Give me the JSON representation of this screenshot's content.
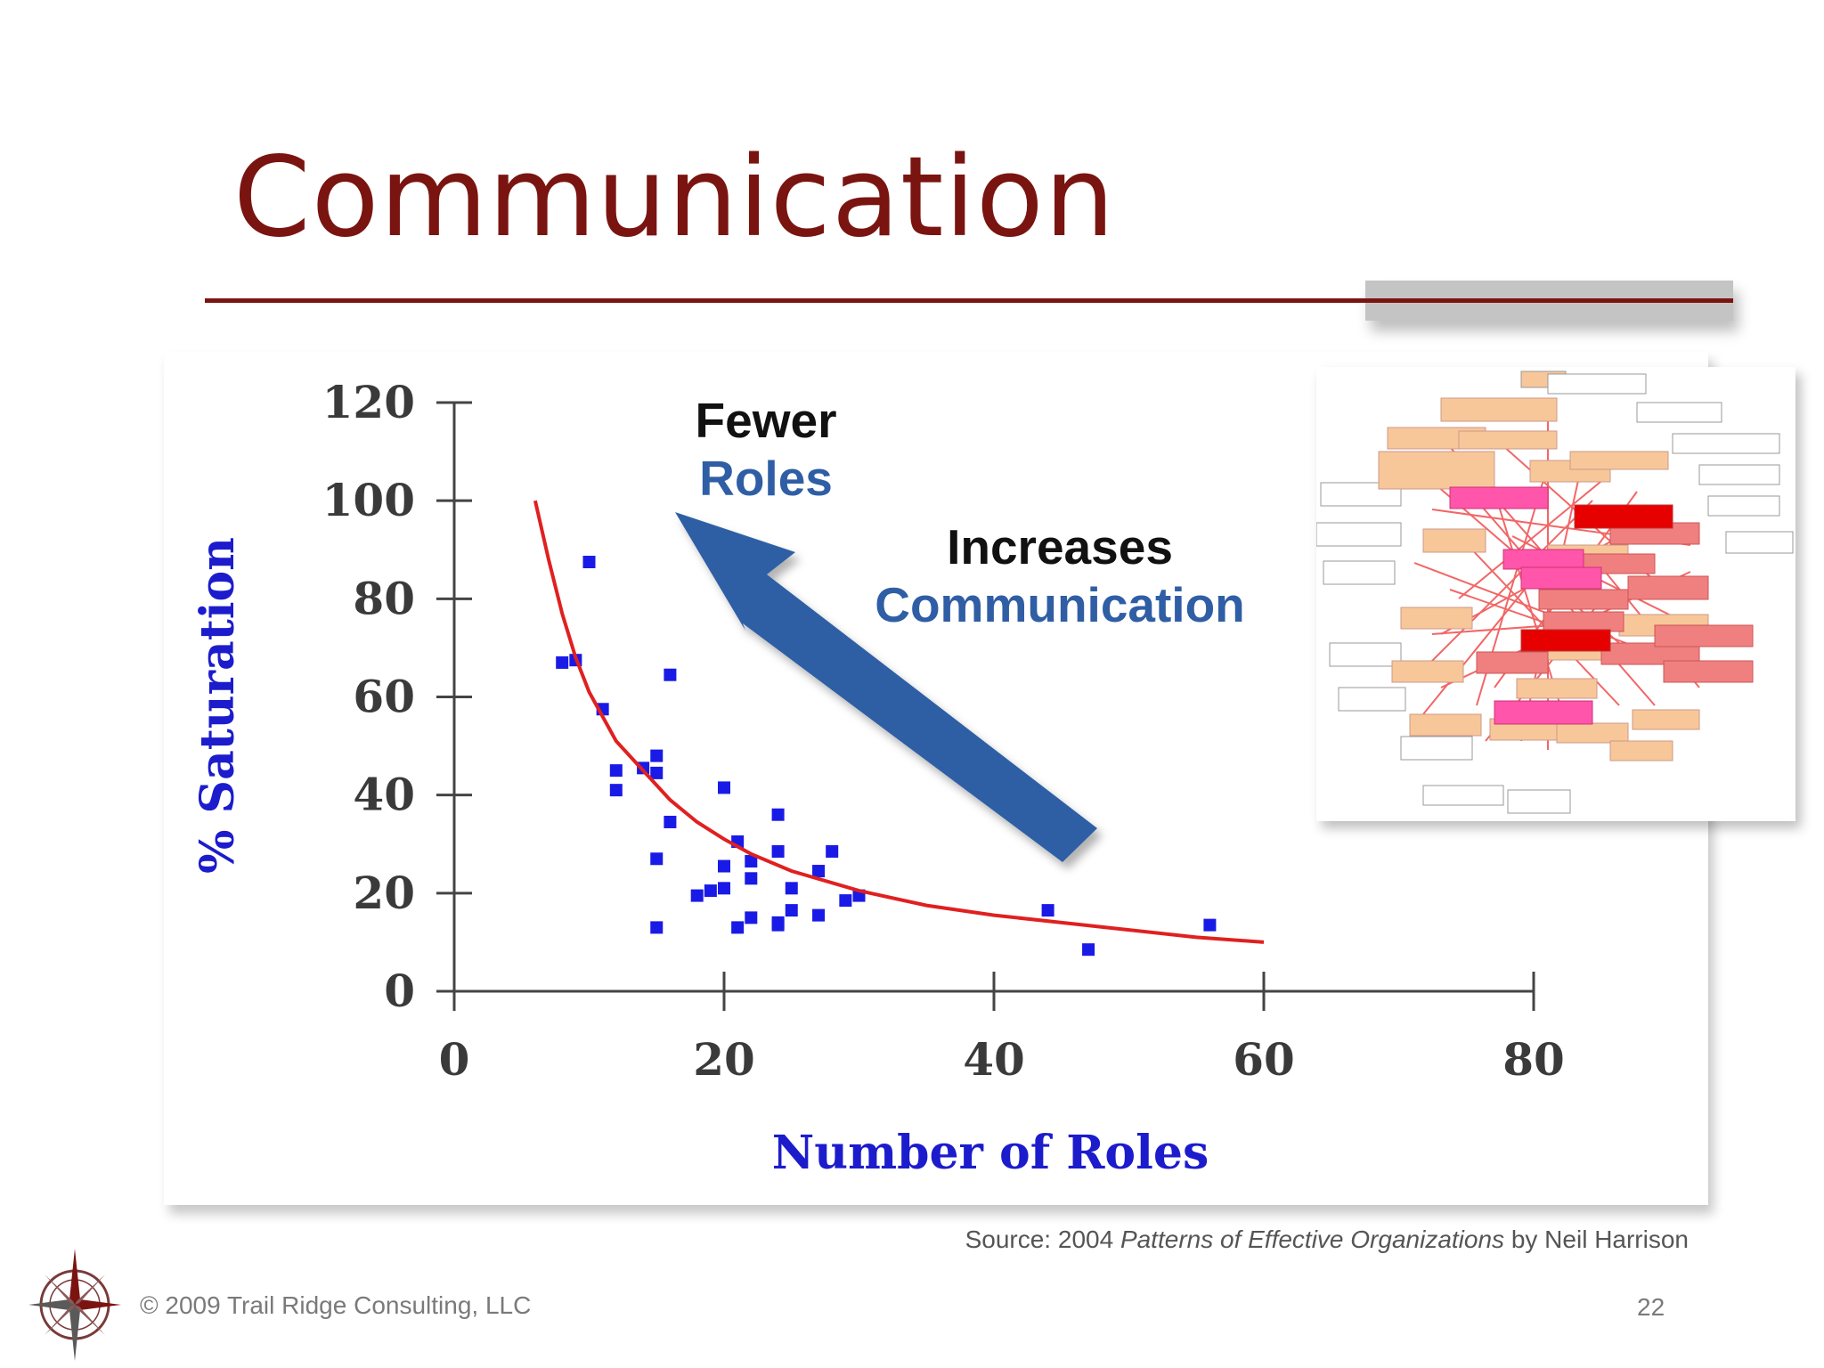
{
  "slide": {
    "title": "Communication",
    "source_prefix": "Source: 2004 ",
    "source_title": "Patterns of Effective Organizations",
    "source_suffix": " by Neil Harrison",
    "footer": "© 2009 Trail Ridge Consulting, LLC",
    "page_number": "22"
  },
  "annotations": {
    "fewer_line1": "Fewer",
    "fewer_line2": "Roles",
    "increases_line1": "Increases",
    "increases_line2": "Communication"
  },
  "colors": {
    "title": "#7a1410",
    "points": "#1a1ae6",
    "trend": "#e02020",
    "arrow": "#2f5ea5",
    "axis_label": "#1c1ccc"
  },
  "icons": {
    "logo": "compass-rose-icon",
    "network": "organization-network-graph"
  },
  "chart_data": {
    "type": "scatter",
    "xlabel": "Number of Roles",
    "ylabel": "% Saturation",
    "xlim": [
      0,
      80
    ],
    "ylim": [
      0,
      120
    ],
    "xticks": [
      0,
      20,
      40,
      60,
      80
    ],
    "yticks": [
      0,
      20,
      40,
      60,
      80,
      100,
      120
    ],
    "grid": false,
    "series": [
      {
        "type": "scatter",
        "points": [
          [
            8,
            67
          ],
          [
            9,
            67.5
          ],
          [
            10,
            87.5
          ],
          [
            11,
            57.5
          ],
          [
            12,
            45
          ],
          [
            12,
            41
          ],
          [
            14,
            45.5
          ],
          [
            15,
            48
          ],
          [
            15,
            44.5
          ],
          [
            15,
            27
          ],
          [
            15,
            13
          ],
          [
            16,
            64.5
          ],
          [
            16,
            34.5
          ],
          [
            18,
            19.5
          ],
          [
            19,
            20.5
          ],
          [
            20,
            21
          ],
          [
            20,
            25.5
          ],
          [
            20,
            41.5
          ],
          [
            21,
            30.5
          ],
          [
            21,
            13
          ],
          [
            22,
            26.5
          ],
          [
            22,
            23
          ],
          [
            22,
            15
          ],
          [
            24,
            36
          ],
          [
            24,
            28.5
          ],
          [
            24,
            13.5
          ],
          [
            24,
            14
          ],
          [
            25,
            21
          ],
          [
            25,
            16.5
          ],
          [
            27,
            24.5
          ],
          [
            27,
            15.5
          ],
          [
            28,
            28.5
          ],
          [
            29,
            18.5
          ],
          [
            30,
            19.5
          ],
          [
            44,
            16.5
          ],
          [
            47,
            8.5
          ],
          [
            56,
            13.5
          ]
        ]
      },
      {
        "type": "line",
        "points": [
          [
            6,
            100
          ],
          [
            7,
            88
          ],
          [
            8,
            77
          ],
          [
            9,
            68
          ],
          [
            10,
            61
          ],
          [
            11,
            56
          ],
          [
            12,
            51
          ],
          [
            14,
            45
          ],
          [
            16,
            39
          ],
          [
            18,
            34.5
          ],
          [
            20,
            31
          ],
          [
            22,
            28
          ],
          [
            25,
            24.5
          ],
          [
            30,
            20.5
          ],
          [
            35,
            17.5
          ],
          [
            40,
            15.5
          ],
          [
            45,
            14
          ],
          [
            50,
            12.5
          ],
          [
            55,
            11
          ],
          [
            60,
            10
          ]
        ]
      }
    ]
  }
}
